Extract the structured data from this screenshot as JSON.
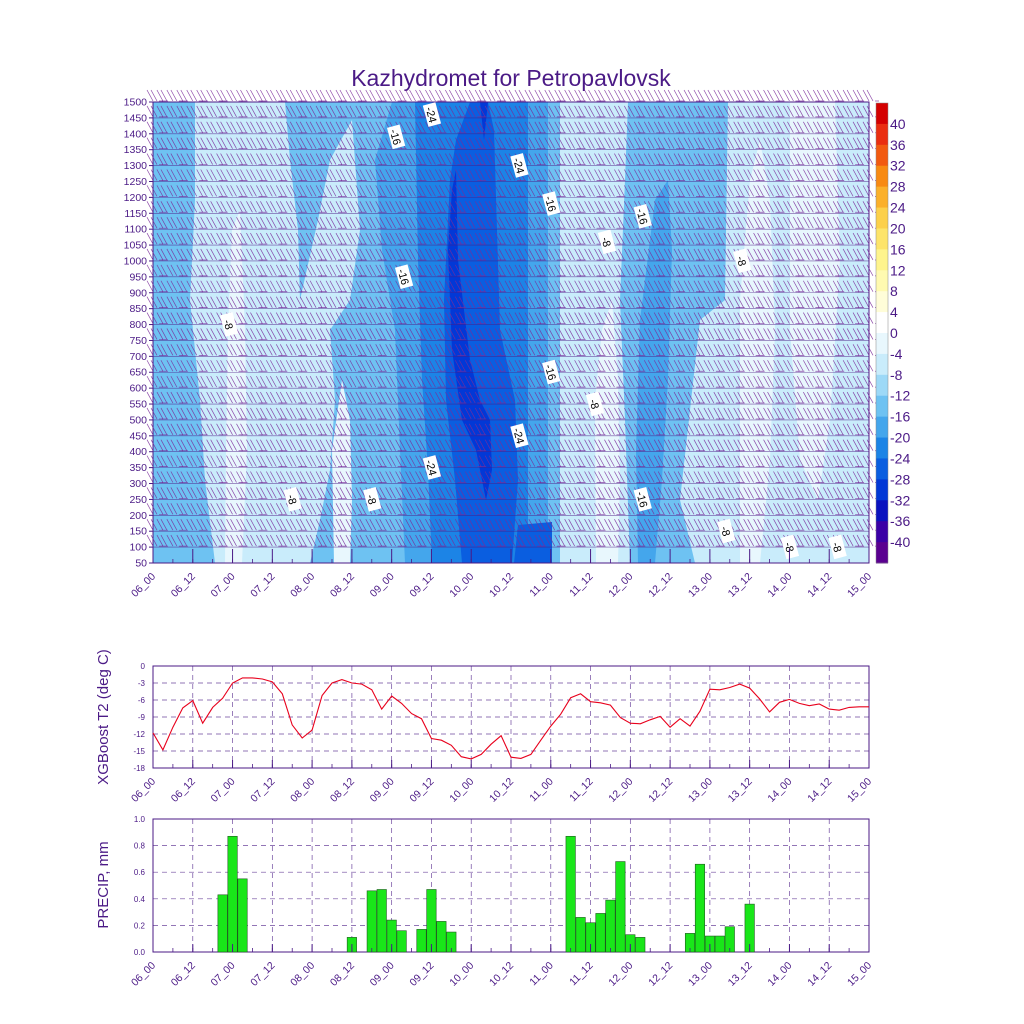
{
  "title": "Kazhydromet for Petropavlovsk",
  "time_labels": [
    "06_00",
    "06_12",
    "07_00",
    "07_12",
    "08_00",
    "08_12",
    "09_00",
    "09_12",
    "10_00",
    "10_12",
    "11_00",
    "11_12",
    "12_00",
    "12_12",
    "13_00",
    "13_12",
    "14_00",
    "14_12",
    "15_00"
  ],
  "colors": {
    "text": "#4b1a86",
    "axis": "#4b1a86",
    "line": "#e8001c",
    "bar": "#19e619",
    "barbs": "#7a2c9a"
  },
  "chart_data": [
    {
      "type": "heatmap",
      "name": "temperature-cross-section",
      "ylabel": "",
      "ylim": [
        50,
        1500
      ],
      "y_ticks": [
        50,
        100,
        150,
        200,
        250,
        300,
        350,
        400,
        450,
        500,
        550,
        600,
        650,
        700,
        750,
        800,
        850,
        900,
        950,
        1000,
        1050,
        1100,
        1150,
        1200,
        1250,
        1300,
        1350,
        1400,
        1450,
        1500
      ],
      "colorbar_labels": [
        "40",
        "36",
        "32",
        "28",
        "24",
        "20",
        "16",
        "12",
        "8",
        "4",
        "0",
        "-4",
        "-8",
        "-12",
        "-16",
        "-20",
        "-24",
        "-28",
        "-32",
        "-36",
        "-40"
      ],
      "colorbar_colors": [
        "#d40000",
        "#ea2e10",
        "#f25a10",
        "#f88a12",
        "#fbb02a",
        "#fcd04a",
        "#fde46a",
        "#fef48c",
        "#fffab0",
        "#fffdd8",
        "#ffffff",
        "#e8f7fd",
        "#c9ecfb",
        "#9dd9f7",
        "#6ec2f2",
        "#44a6ec",
        "#1c84e6",
        "#0a5ee0",
        "#0238d6",
        "#0a12bf",
        "#3b00a6",
        "#5a0090"
      ],
      "contour_labels": [
        {
          "text": "-24",
          "t": 7,
          "p": 1460
        },
        {
          "text": "-16",
          "t": 6.1,
          "p": 1390
        },
        {
          "text": "-24",
          "t": 9.2,
          "p": 1300
        },
        {
          "text": "-16",
          "t": 10.0,
          "p": 1180
        },
        {
          "text": "-16",
          "t": 12.3,
          "p": 1140
        },
        {
          "text": "-8",
          "t": 11.4,
          "p": 1060
        },
        {
          "text": "-8",
          "t": 14.8,
          "p": 1000
        },
        {
          "text": "-16",
          "t": 6.3,
          "p": 950
        },
        {
          "text": "-8",
          "t": 1.9,
          "p": 800
        },
        {
          "text": "-16",
          "t": 10.0,
          "p": 650
        },
        {
          "text": "-8",
          "t": 11.1,
          "p": 550
        },
        {
          "text": "-24",
          "t": 9.2,
          "p": 450
        },
        {
          "text": "-24",
          "t": 7.0,
          "p": 350
        },
        {
          "text": "-8",
          "t": 3.5,
          "p": 250
        },
        {
          "text": "-8",
          "t": 5.5,
          "p": 250
        },
        {
          "text": "-16",
          "t": 12.3,
          "p": 250
        },
        {
          "text": "-8",
          "t": 14.4,
          "p": 150
        },
        {
          "text": "-8",
          "t": 16.0,
          "p": 100
        },
        {
          "text": "-8",
          "t": 17.2,
          "p": 100
        }
      ]
    },
    {
      "type": "line",
      "name": "t2-series",
      "title": "",
      "xlabel": "",
      "ylabel": "XGBoost T2 (deg C)",
      "ylim": [
        -18,
        0
      ],
      "y_ticks": [
        "0",
        "-3",
        "-6",
        "-9",
        "-12",
        "-15",
        "-18"
      ],
      "x": [
        0,
        0.25,
        0.5,
        0.75,
        1,
        1.25,
        1.5,
        1.75,
        2,
        2.25,
        2.5,
        2.75,
        3,
        3.25,
        3.5,
        3.75,
        4,
        4.25,
        4.5,
        4.75,
        5,
        5.25,
        5.5,
        5.75,
        6,
        6.25,
        6.5,
        6.75,
        7,
        7.25,
        7.5,
        7.75,
        8,
        8.25,
        8.5,
        8.75,
        9,
        9.25,
        9.5,
        9.75,
        10,
        10.25,
        10.5,
        10.75,
        11,
        11.25,
        11.5,
        11.75,
        12,
        12.25,
        12.5,
        12.75,
        13,
        13.25,
        13.5,
        13.75,
        14,
        14.25,
        14.5,
        14.75,
        15,
        15.25,
        15.5,
        15.75,
        16,
        16.25,
        16.5,
        16.75,
        17,
        17.25,
        17.5,
        17.75,
        18
      ],
      "values": [
        -11.8,
        -14.8,
        -10.8,
        -7.4,
        -6.1,
        -10.1,
        -7.3,
        -5.7,
        -3.0,
        -2.1,
        -2.1,
        -2.3,
        -2.8,
        -4.9,
        -10.4,
        -12.7,
        -11.3,
        -5.2,
        -3.0,
        -2.4,
        -3.0,
        -3.2,
        -4.2,
        -7.6,
        -5.3,
        -6.6,
        -8.4,
        -9.3,
        -12.8,
        -13.1,
        -14.0,
        -16.0,
        -16.4,
        -15.6,
        -13.8,
        -12.3,
        -16.1,
        -16.3,
        -15.6,
        -13.1,
        -10.6,
        -8.5,
        -5.6,
        -4.9,
        -6.3,
        -6.5,
        -6.9,
        -9.1,
        -10.1,
        -10.2,
        -9.5,
        -8.9,
        -10.8,
        -9.3,
        -10.6,
        -8.0,
        -4.1,
        -4.2,
        -3.8,
        -3.2,
        -3.9,
        -5.8,
        -8.1,
        -6.4,
        -5.9,
        -6.6,
        -7.0,
        -6.7,
        -7.6,
        -7.8,
        -7.3,
        -7.2,
        -7.2
      ]
    },
    {
      "type": "bar",
      "name": "precip-series",
      "title": "",
      "xlabel": "",
      "ylabel": "PRECIP, mm",
      "ylim": [
        0,
        1.0
      ],
      "y_ticks": [
        "1.0",
        "0.8",
        "0.6",
        "0.4",
        "0.2",
        "0.0"
      ],
      "bars": [
        {
          "x": 1.75,
          "value": 0.43
        },
        {
          "x": 2.0,
          "value": 0.87
        },
        {
          "x": 2.25,
          "value": 0.55
        },
        {
          "x": 5.0,
          "value": 0.11
        },
        {
          "x": 5.5,
          "value": 0.46
        },
        {
          "x": 5.75,
          "value": 0.47
        },
        {
          "x": 6.0,
          "value": 0.24
        },
        {
          "x": 6.25,
          "value": 0.16
        },
        {
          "x": 6.75,
          "value": 0.17
        },
        {
          "x": 7.0,
          "value": 0.47
        },
        {
          "x": 7.25,
          "value": 0.23
        },
        {
          "x": 7.5,
          "value": 0.15
        },
        {
          "x": 10.5,
          "value": 0.87
        },
        {
          "x": 10.75,
          "value": 0.26
        },
        {
          "x": 11.0,
          "value": 0.22
        },
        {
          "x": 11.25,
          "value": 0.29
        },
        {
          "x": 11.5,
          "value": 0.39
        },
        {
          "x": 11.75,
          "value": 0.68
        },
        {
          "x": 12.0,
          "value": 0.13
        },
        {
          "x": 12.25,
          "value": 0.11
        },
        {
          "x": 13.5,
          "value": 0.14
        },
        {
          "x": 13.75,
          "value": 0.66
        },
        {
          "x": 14.0,
          "value": 0.12
        },
        {
          "x": 14.25,
          "value": 0.12
        },
        {
          "x": 14.5,
          "value": 0.19
        },
        {
          "x": 15.0,
          "value": 0.36
        }
      ]
    }
  ]
}
